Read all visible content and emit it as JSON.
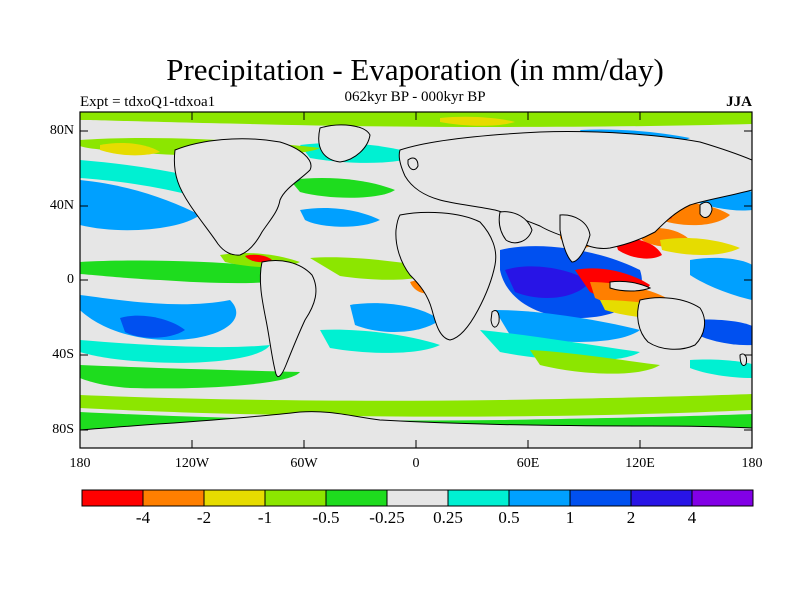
{
  "title": "Precipitation - Evaporation (in mm/day)",
  "subtitle": "062kyr BP - 000kyr BP",
  "left_label": "Expt = tdxoQ1-tdxoa1",
  "right_label": "JJA",
  "lat_ticks": [
    "80N",
    "40N",
    "0",
    "40S",
    "80S"
  ],
  "lon_ticks": [
    "180",
    "120W",
    "60W",
    "0",
    "60E",
    "120E",
    "180"
  ],
  "colorbar": {
    "colors": [
      "#ff0000",
      "#ff7f00",
      "#e6dc00",
      "#8ce600",
      "#1edc1e",
      "#e6e6e6",
      "#00f0d2",
      "#00a0ff",
      "#0050f0",
      "#2814e6",
      "#8200e6"
    ],
    "labels": [
      "-4",
      "-2",
      "-1",
      "-0.5",
      "-0.25",
      "0.25",
      "0.5",
      "1",
      "2",
      "4"
    ]
  },
  "map": {
    "land_fill": "#e6e6e6",
    "coastline_color": "#000000"
  }
}
